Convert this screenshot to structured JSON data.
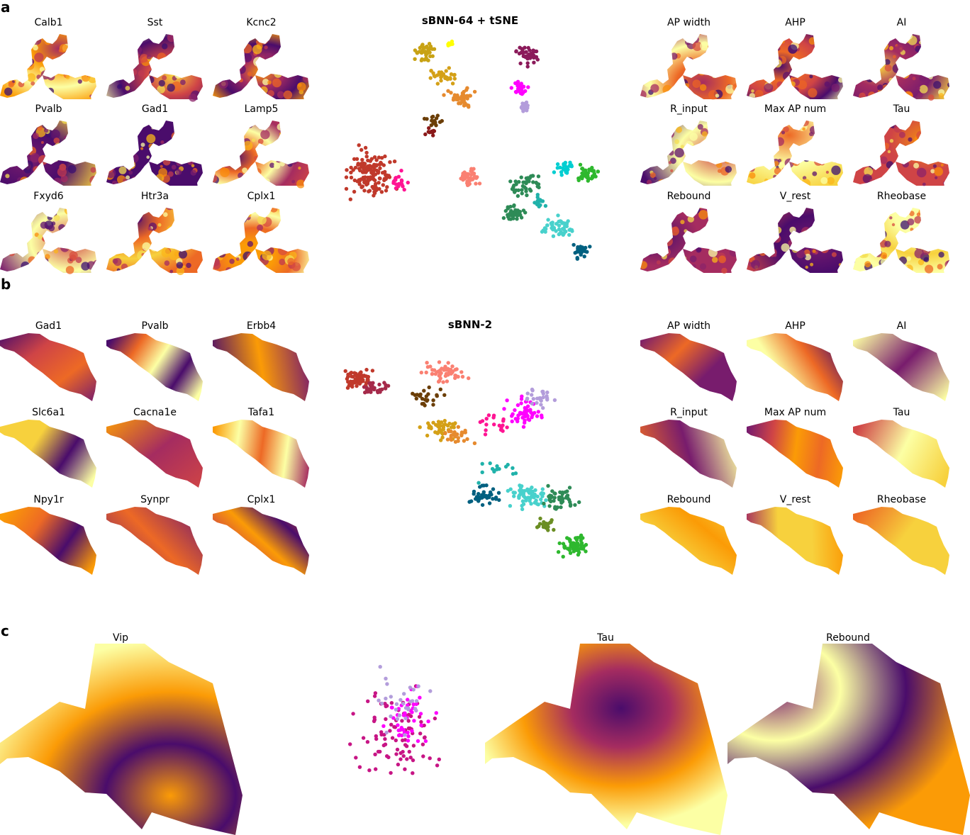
{
  "panel_a": {
    "letter": "a",
    "center_title": "sBNN-64 + tSNE",
    "gene_titles": [
      "Calb1",
      "Sst",
      "Kcnc2",
      "Pvalb",
      "Gad1",
      "Lamp5",
      "Fxyd6",
      "Htr3a",
      "Cplx1"
    ],
    "ephys_titles": [
      "AP width",
      "AHP",
      "AI",
      "R_input",
      "Max AP num",
      "Tau",
      "Rebound",
      "V_rest",
      "Rheobase"
    ]
  },
  "panel_b": {
    "letter": "b",
    "center_title": "sBNN-2",
    "gene_titles": [
      "Gad1",
      "Pvalb",
      "Erbb4",
      "Slc6a1",
      "Cacna1e",
      "Tafa1",
      "Npy1r",
      "Synpr",
      "Cplx1"
    ],
    "ephys_titles": [
      "AP width",
      "AHP",
      "AI",
      "R_input",
      "Max AP num",
      "Tau",
      "Rebound",
      "V_rest",
      "Rheobase"
    ]
  },
  "panel_c": {
    "letter": "c",
    "titles": [
      "Vip",
      "Tau",
      "Rebound"
    ]
  },
  "colors": {
    "colormap": "inferno",
    "clusters": [
      "#c8a214",
      "#d4a017",
      "#ffff00",
      "#8b1a1a",
      "#6b3e07",
      "#e68a2e",
      "#8b1a5a",
      "#c71585",
      "#ff00ff",
      "#b39ddb",
      "#9932cc",
      "#c0392b",
      "#a52a4a",
      "#ff1493",
      "#fa8072",
      "#2e8b57",
      "#20b2aa",
      "#48d1cc",
      "#00ced1",
      "#006080",
      "#2eb82e",
      "#6b8e23"
    ]
  }
}
